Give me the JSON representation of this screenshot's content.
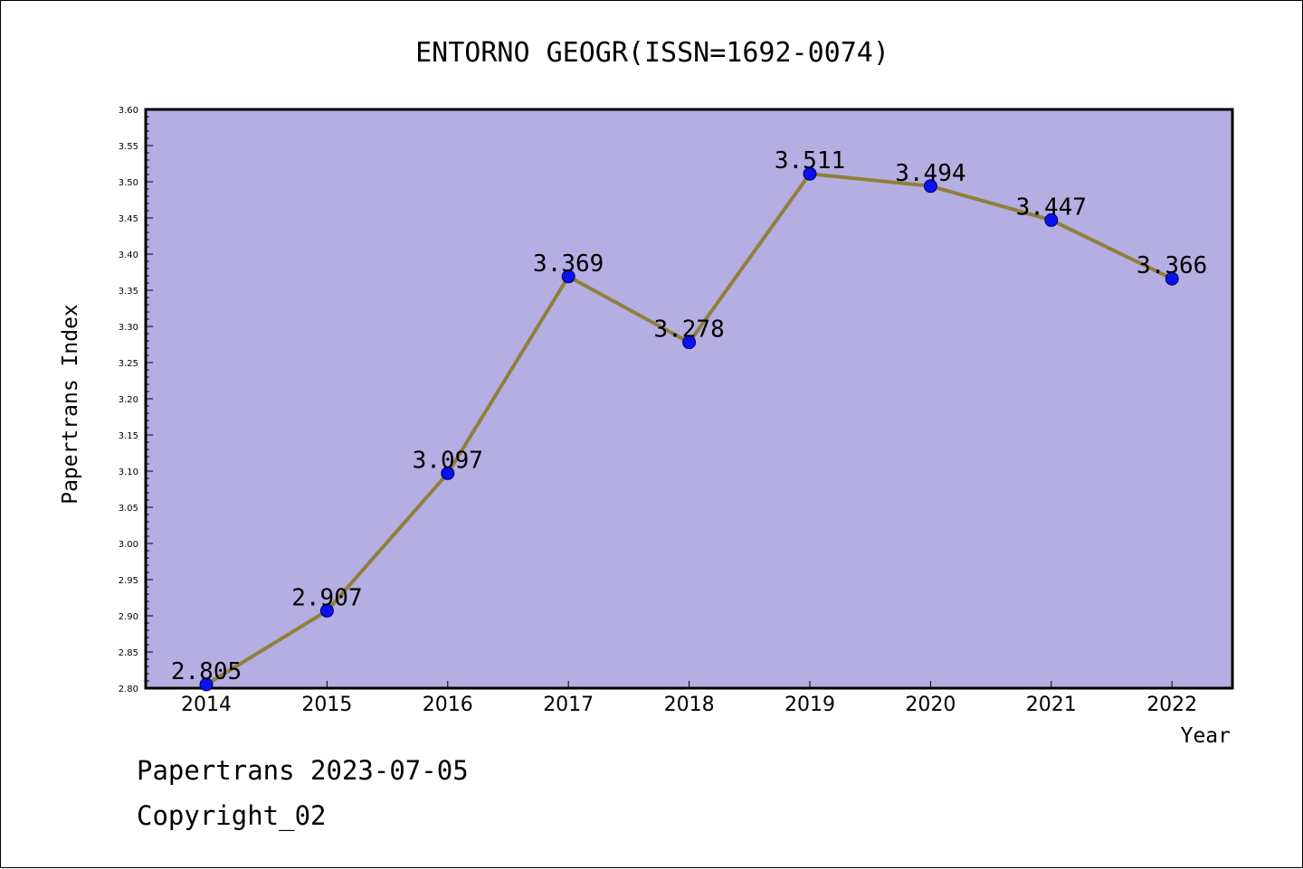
{
  "chart_data": {
    "type": "line",
    "title": "ENTORNO GEOGR(ISSN=1692-0074)",
    "xlabel": "Year",
    "ylabel": "Papertrans Index",
    "categories": [
      "2014",
      "2015",
      "2016",
      "2017",
      "2018",
      "2019",
      "2020",
      "2021",
      "2022"
    ],
    "series": [
      {
        "values": [
          2.805,
          2.907,
          3.097,
          3.369,
          3.278,
          3.511,
          3.494,
          3.447,
          3.366
        ]
      }
    ],
    "data_labels": [
      "2.805",
      "2.907",
      "3.097",
      "3.369",
      "3.278",
      "3.511",
      "3.494",
      "3.447",
      "3.366"
    ],
    "ylim": [
      2.8,
      3.6
    ],
    "yticks": [
      "2.80",
      "2.85",
      "2.90",
      "2.95",
      "3.00",
      "3.05",
      "3.10",
      "3.15",
      "3.20",
      "3.25",
      "3.30",
      "3.35",
      "3.40",
      "3.45",
      "3.50",
      "3.55",
      "3.60"
    ],
    "grid": false,
    "colors": {
      "plot_background": "#b4aee2",
      "line": "#8f7f3a",
      "marker": "#0a12f0",
      "marker_edge": "#000066"
    }
  },
  "footer": {
    "line1": "Papertrans 2023-07-05",
    "line2": "Copyright_02"
  }
}
